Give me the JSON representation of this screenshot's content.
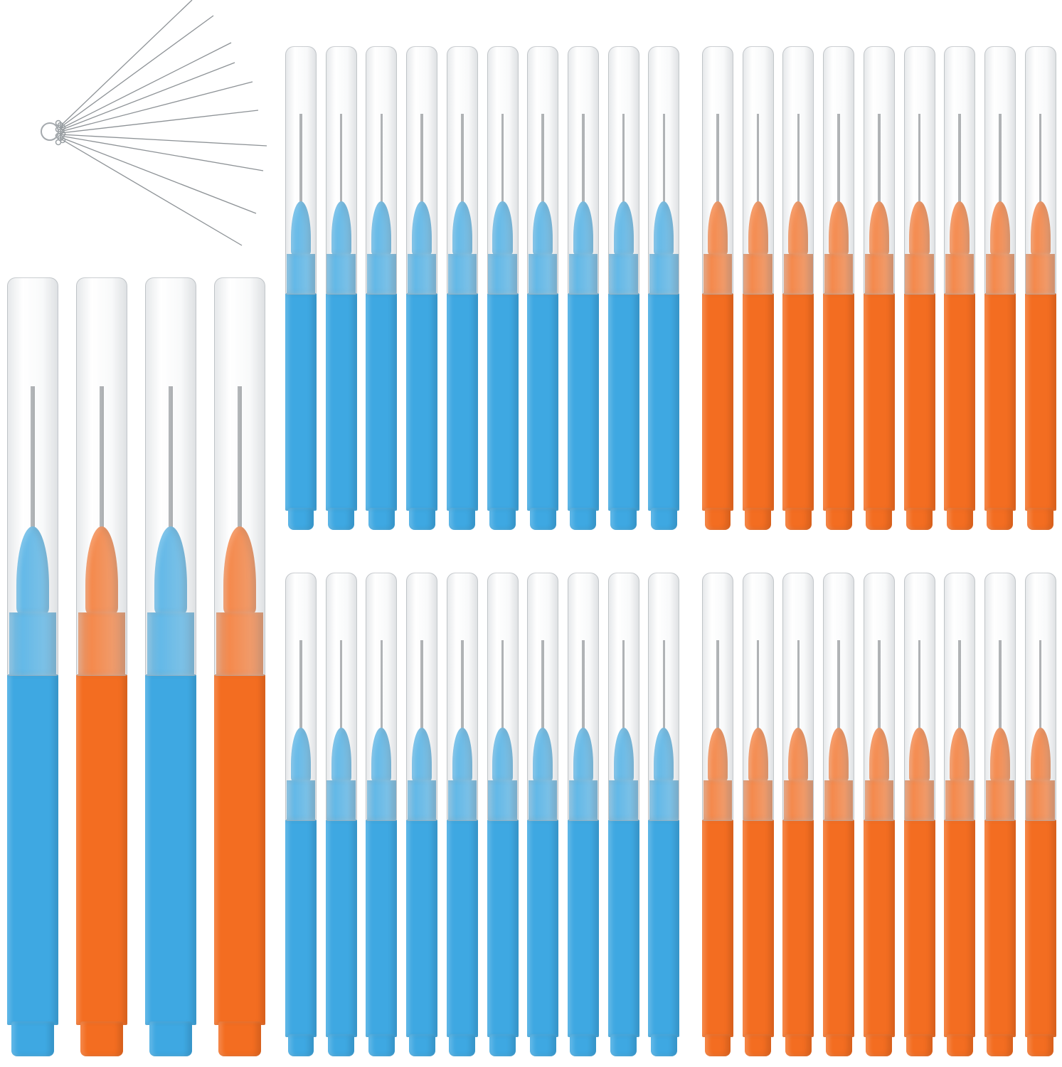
{
  "scene": "product-photo",
  "colors": {
    "blue": "#3ea8e2",
    "orange": "#f36d21",
    "background": "#ffffff",
    "cap": "#e6e9ec",
    "wire": "#9a9ea2"
  },
  "groups": [
    {
      "name": "large-brushes",
      "colors": [
        "blue",
        "orange",
        "blue",
        "orange"
      ]
    },
    {
      "name": "top-row",
      "colors": [
        "blue",
        "blue",
        "blue",
        "blue",
        "blue",
        "blue",
        "blue",
        "blue",
        "blue",
        "blue",
        "orange",
        "orange",
        "orange",
        "orange",
        "orange",
        "orange",
        "orange",
        "orange",
        "orange",
        "orange"
      ]
    },
    {
      "name": "bottom-row",
      "colors": [
        "blue",
        "blue",
        "blue",
        "blue",
        "blue",
        "blue",
        "blue",
        "blue",
        "blue",
        "blue",
        "orange",
        "orange",
        "orange",
        "orange",
        "orange",
        "orange",
        "orange",
        "orange",
        "orange",
        "orange"
      ]
    }
  ],
  "needle_count": 10,
  "icons": {
    "needle-set": "cleaning-needle-set-icon"
  }
}
